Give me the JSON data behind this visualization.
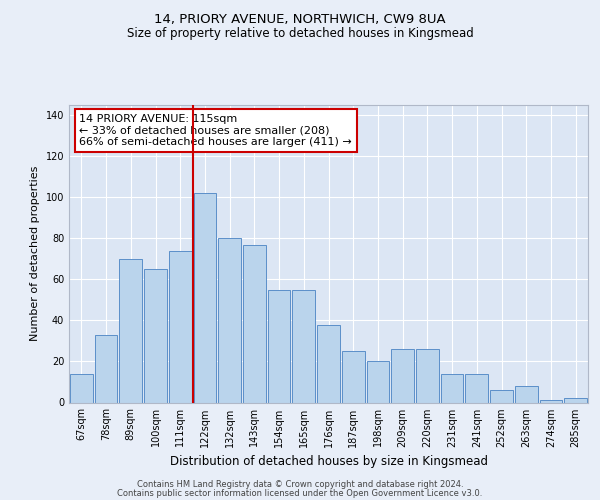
{
  "title1": "14, PRIORY AVENUE, NORTHWICH, CW9 8UA",
  "title2": "Size of property relative to detached houses in Kingsmead",
  "xlabel": "Distribution of detached houses by size in Kingsmead",
  "ylabel": "Number of detached properties",
  "categories": [
    "67sqm",
    "78sqm",
    "89sqm",
    "100sqm",
    "111sqm",
    "122sqm",
    "132sqm",
    "143sqm",
    "154sqm",
    "165sqm",
    "176sqm",
    "187sqm",
    "198sqm",
    "209sqm",
    "220sqm",
    "231sqm",
    "241sqm",
    "252sqm",
    "263sqm",
    "274sqm",
    "285sqm"
  ],
  "values": [
    14,
    33,
    70,
    65,
    74,
    102,
    80,
    77,
    55,
    55,
    38,
    25,
    20,
    26,
    26,
    14,
    14,
    6,
    8,
    1,
    2
  ],
  "bar_color": "#bad4ec",
  "bar_edge_color": "#5b8fc9",
  "vline_x": 4.5,
  "vline_color": "#cc0000",
  "annotation_line1": "14 PRIORY AVENUE: 115sqm",
  "annotation_line2": "← 33% of detached houses are smaller (208)",
  "annotation_line3": "66% of semi-detached houses are larger (411) →",
  "annotation_box_color": "#cc0000",
  "annotation_box_fill": "white",
  "footer1": "Contains HM Land Registry data © Crown copyright and database right 2024.",
  "footer2": "Contains public sector information licensed under the Open Government Licence v3.0.",
  "ylim": [
    0,
    145
  ],
  "background_color": "#e8eef8",
  "plot_background": "#dce6f4",
  "title1_fontsize": 9.5,
  "title2_fontsize": 8.5,
  "ylabel_fontsize": 8,
  "xlabel_fontsize": 8.5,
  "tick_fontsize": 7,
  "footer_fontsize": 6,
  "ann_fontsize": 8
}
